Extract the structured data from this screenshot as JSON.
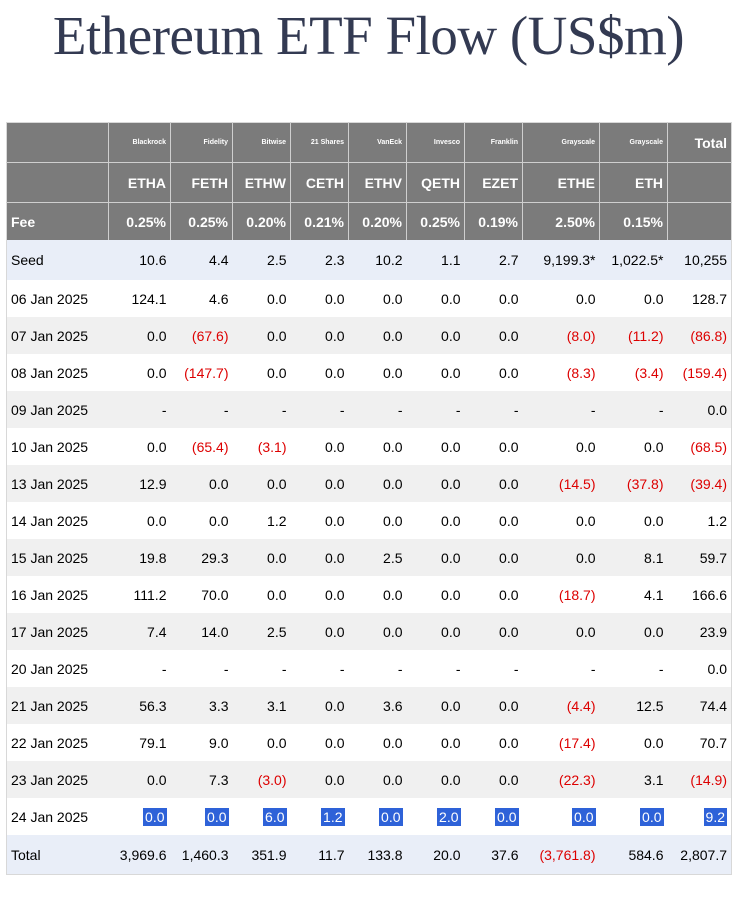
{
  "title": "Ethereum ETF Flow (US$m)",
  "colors": {
    "header_bg": "#7b7b7b",
    "band": "#f0f0f0",
    "seed_bg": "#e9eef8",
    "negative": "#dd0000",
    "highlight": "#2e62d8"
  },
  "header": {
    "issuers": [
      "Blackrock",
      "Fidelity",
      "Bitwise",
      "21 Shares",
      "VanEck",
      "Invesco",
      "Franklin",
      "Grayscale",
      "Grayscale"
    ],
    "total": "Total",
    "tickers": [
      "ETHA",
      "FETH",
      "ETHW",
      "CETH",
      "ETHV",
      "QETH",
      "EZET",
      "ETHE",
      "ETH"
    ],
    "fee_label": "Fee",
    "fees": [
      "0.25%",
      "0.25%",
      "0.20%",
      "0.21%",
      "0.20%",
      "0.25%",
      "0.19%",
      "2.50%",
      "0.15%"
    ]
  },
  "rows": [
    {
      "label": "Seed",
      "values": [
        "10.6",
        "4.4",
        "2.5",
        "2.3",
        "10.2",
        "1.1",
        "2.7",
        "9,199.3*",
        "1,022.5*"
      ],
      "total": "10,255"
    },
    {
      "label": "06 Jan 2025",
      "values": [
        "124.1",
        "4.6",
        "0.0",
        "0.0",
        "0.0",
        "0.0",
        "0.0",
        "0.0",
        "0.0"
      ],
      "total": "128.7"
    },
    {
      "label": "07 Jan 2025",
      "values": [
        "0.0",
        "(67.6)",
        "0.0",
        "0.0",
        "0.0",
        "0.0",
        "0.0",
        "(8.0)",
        "(11.2)"
      ],
      "total": "(86.8)"
    },
    {
      "label": "08 Jan 2025",
      "values": [
        "0.0",
        "(147.7)",
        "0.0",
        "0.0",
        "0.0",
        "0.0",
        "0.0",
        "(8.3)",
        "(3.4)"
      ],
      "total": "(159.4)"
    },
    {
      "label": "09 Jan 2025",
      "values": [
        "-",
        "-",
        "-",
        "-",
        "-",
        "-",
        "-",
        "-",
        "-"
      ],
      "total": "0.0"
    },
    {
      "label": "10 Jan 2025",
      "values": [
        "0.0",
        "(65.4)",
        "(3.1)",
        "0.0",
        "0.0",
        "0.0",
        "0.0",
        "0.0",
        "0.0"
      ],
      "total": "(68.5)"
    },
    {
      "label": "13 Jan 2025",
      "values": [
        "12.9",
        "0.0",
        "0.0",
        "0.0",
        "0.0",
        "0.0",
        "0.0",
        "(14.5)",
        "(37.8)"
      ],
      "total": "(39.4)"
    },
    {
      "label": "14 Jan 2025",
      "values": [
        "0.0",
        "0.0",
        "1.2",
        "0.0",
        "0.0",
        "0.0",
        "0.0",
        "0.0",
        "0.0"
      ],
      "total": "1.2"
    },
    {
      "label": "15 Jan 2025",
      "values": [
        "19.8",
        "29.3",
        "0.0",
        "0.0",
        "2.5",
        "0.0",
        "0.0",
        "0.0",
        "8.1"
      ],
      "total": "59.7"
    },
    {
      "label": "16 Jan 2025",
      "values": [
        "111.2",
        "70.0",
        "0.0",
        "0.0",
        "0.0",
        "0.0",
        "0.0",
        "(18.7)",
        "4.1"
      ],
      "total": "166.6"
    },
    {
      "label": "17 Jan 2025",
      "values": [
        "7.4",
        "14.0",
        "2.5",
        "0.0",
        "0.0",
        "0.0",
        "0.0",
        "0.0",
        "0.0"
      ],
      "total": "23.9"
    },
    {
      "label": "20 Jan 2025",
      "values": [
        "-",
        "-",
        "-",
        "-",
        "-",
        "-",
        "-",
        "-",
        "-"
      ],
      "total": "0.0"
    },
    {
      "label": "21 Jan 2025",
      "values": [
        "56.3",
        "3.3",
        "3.1",
        "0.0",
        "3.6",
        "0.0",
        "0.0",
        "(4.4)",
        "12.5"
      ],
      "total": "74.4"
    },
    {
      "label": "22 Jan 2025",
      "values": [
        "79.1",
        "9.0",
        "0.0",
        "0.0",
        "0.0",
        "0.0",
        "0.0",
        "(17.4)",
        "0.0"
      ],
      "total": "70.7"
    },
    {
      "label": "23 Jan 2025",
      "values": [
        "0.0",
        "7.3",
        "(3.0)",
        "0.0",
        "0.0",
        "0.0",
        "0.0",
        "(22.3)",
        "3.1"
      ],
      "total": "(14.9)"
    },
    {
      "label": "24 Jan 2025",
      "values": [
        "0.0",
        "0.0",
        "6.0",
        "1.2",
        "0.0",
        "2.0",
        "0.0",
        "0.0",
        "0.0"
      ],
      "total": "9.2",
      "highlighted": true
    },
    {
      "label": "Total",
      "values": [
        "3,969.6",
        "1,460.3",
        "351.9",
        "11.7",
        "133.8",
        "20.0",
        "37.6",
        "(3,761.8)",
        "584.6"
      ],
      "total": "2,807.7"
    }
  ]
}
